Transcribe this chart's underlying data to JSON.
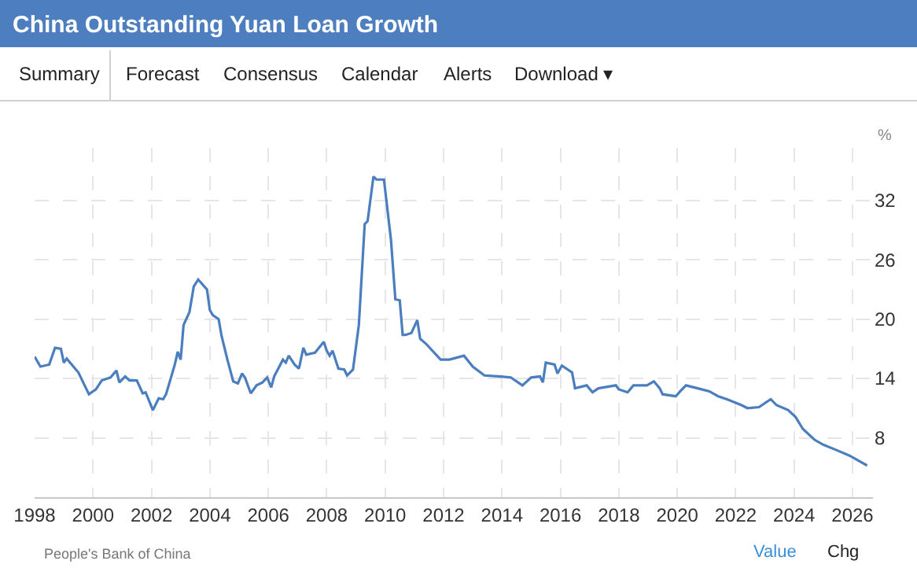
{
  "chart_data": {
    "type": "line",
    "title": "China Outstanding Yuan Loan Growth",
    "ylabel": "%",
    "annotations": [
      "Summary",
      "Forecast",
      "Consensus",
      "Calendar",
      "Alerts",
      "Download ▾",
      "People's Bank of China",
      "Value",
      "Chg"
    ],
    "x": [
      1998.0,
      1998.2,
      1998.5,
      1998.7,
      1998.9,
      1999.0,
      1999.1,
      1999.5,
      1999.86,
      2000.1,
      2000.3,
      2000.6,
      2000.8,
      2000.9,
      2001.1,
      2001.25,
      2001.5,
      2001.7,
      2001.8,
      2002.05,
      2002.25,
      2002.4,
      2002.5,
      2002.8,
      2002.9,
      2003.0,
      2003.1,
      2003.3,
      2003.45,
      2003.6,
      2003.9,
      2004.0,
      2004.1,
      2004.3,
      2004.4,
      2004.6,
      2004.8,
      2004.96,
      2005.1,
      2005.2,
      2005.4,
      2005.6,
      2005.8,
      2005.96,
      2006.1,
      2006.2,
      2006.5,
      2006.6,
      2006.7,
      2006.9,
      2007.05,
      2007.2,
      2007.3,
      2007.6,
      2007.9,
      2008.0,
      2008.1,
      2008.2,
      2008.4,
      2008.6,
      2008.7,
      2008.9,
      2009.1,
      2009.3,
      2009.4,
      2009.6,
      2009.7,
      2009.96,
      2010.2,
      2010.35,
      2010.5,
      2010.6,
      2010.7,
      2010.9,
      2011.1,
      2011.2,
      2011.4,
      2011.9,
      2012.2,
      2012.7,
      2013.0,
      2013.4,
      2013.96,
      2014.3,
      2014.7,
      2015.0,
      2015.3,
      2015.4,
      2015.5,
      2015.8,
      2015.9,
      2016.05,
      2016.4,
      2016.5,
      2016.9,
      2017.1,
      2017.3,
      2017.9,
      2018.0,
      2018.3,
      2018.5,
      2018.96,
      2019.2,
      2019.4,
      2019.5,
      2019.95,
      2020.1,
      2020.3,
      2020.7,
      2021.1,
      2021.4,
      2021.7,
      2022.2,
      2022.4,
      2022.8,
      2023.2,
      2023.4,
      2023.8,
      2024.05,
      2024.3,
      2024.7,
      2025.0,
      2025.5,
      2025.9,
      2026.5
    ],
    "series": [
      {
        "color": "#4a7ebf",
        "values": [
          16.2,
          15.2,
          15.4,
          17.1,
          17.0,
          15.6,
          16.0,
          14.6,
          12.4,
          12.9,
          13.8,
          14.1,
          14.8,
          13.6,
          14.2,
          13.8,
          13.8,
          12.5,
          12.6,
          10.8,
          12.0,
          11.9,
          12.4,
          15.4,
          16.7,
          15.9,
          19.4,
          20.7,
          23.3,
          24.0,
          23.0,
          20.9,
          20.4,
          20.0,
          18.3,
          15.9,
          13.7,
          13.5,
          14.5,
          14.1,
          12.5,
          13.3,
          13.6,
          14.1,
          13.1,
          14.2,
          15.9,
          15.6,
          16.3,
          15.4,
          15.0,
          17.1,
          16.4,
          16.6,
          17.7,
          16.8,
          16.3,
          16.8,
          15.0,
          14.9,
          14.3,
          14.9,
          19.4,
          29.6,
          29.9,
          34.4,
          34.1,
          34.1,
          28.0,
          22.0,
          21.9,
          18.4,
          18.4,
          18.6,
          19.9,
          18.0,
          17.5,
          15.9,
          15.9,
          16.3,
          15.2,
          14.3,
          14.2,
          14.1,
          13.3,
          14.1,
          14.2,
          13.6,
          15.6,
          15.4,
          14.5,
          15.3,
          14.6,
          13.0,
          13.3,
          12.6,
          13.0,
          13.3,
          12.9,
          12.6,
          13.3,
          13.3,
          13.7,
          13.0,
          12.4,
          12.2,
          12.7,
          13.3,
          13.0,
          12.7,
          12.2,
          11.9,
          11.3,
          11.0,
          11.1,
          11.9,
          11.3,
          10.8,
          10.1,
          8.9,
          7.8,
          7.3,
          6.7,
          6.2,
          5.2
        ]
      }
    ],
    "xlim": [
      1998,
      2026.7
    ],
    "xticks": [
      1998,
      2000,
      2002,
      2004,
      2006,
      2008,
      2010,
      2012,
      2014,
      2016,
      2018,
      2020,
      2022,
      2024,
      2026
    ],
    "ylim": [
      2,
      37.3
    ],
    "yticks": [
      8,
      14,
      20,
      26,
      32
    ],
    "grid": true,
    "marker": "none",
    "line_style": "solid"
  }
}
